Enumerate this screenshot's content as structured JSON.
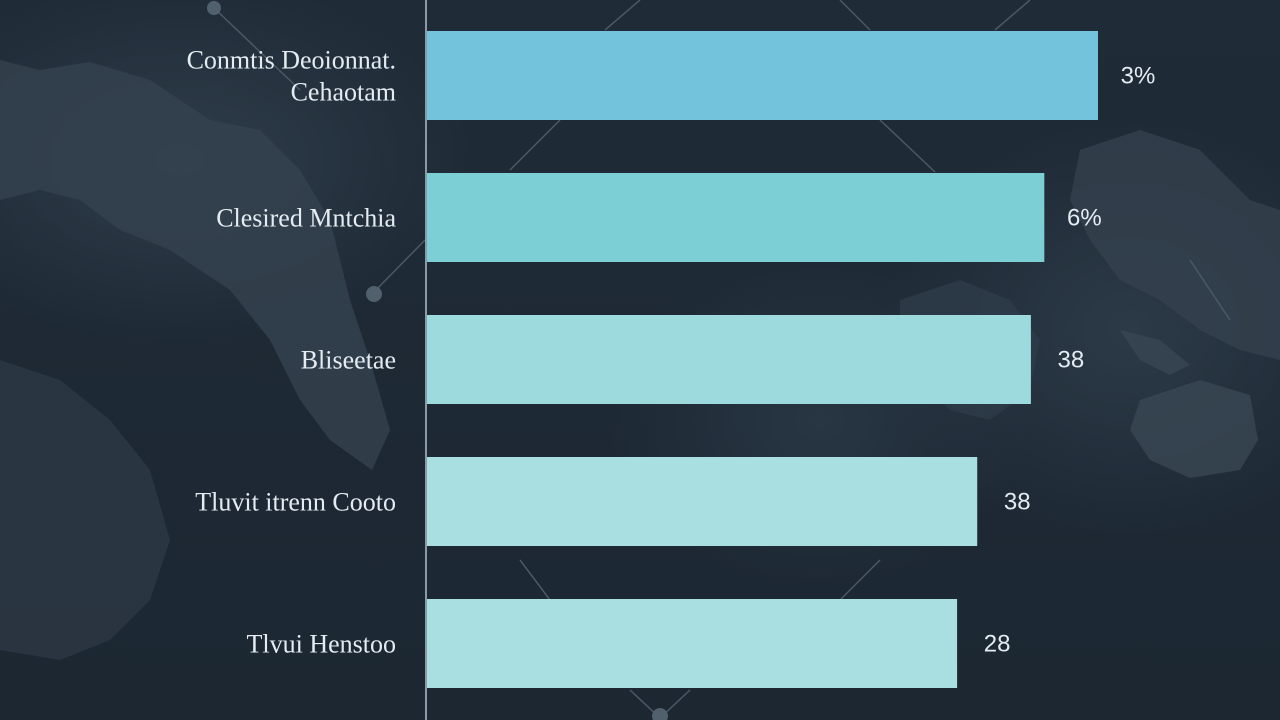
{
  "chart_data": {
    "type": "bar",
    "orientation": "horizontal",
    "categories": [
      [
        "Conmtis Deoionnat.",
        "Cehaotam"
      ],
      [
        "Clesired Mntchia"
      ],
      [
        "Bliseetae"
      ],
      [
        "Tluvit itrenn Cooto"
      ],
      [
        "Tlvui Henstoo"
      ]
    ],
    "value_labels": [
      "3%",
      "6%",
      "38",
      "38",
      "28"
    ],
    "relative_lengths": [
      100,
      92,
      90,
      82,
      79
    ],
    "bar_colors": [
      "#74c3dc",
      "#7ccfd5",
      "#9ddadd",
      "#a9dfe0",
      "#a9dfe0"
    ],
    "title": "",
    "xlabel": "",
    "ylabel": "",
    "grid": false,
    "legend": "none"
  },
  "colors": {
    "background": "#1f2b37",
    "land": "#34414e",
    "network_lines": "#4b5965",
    "axis_line": "#8c9aa6",
    "text": "#e4ecf2"
  }
}
